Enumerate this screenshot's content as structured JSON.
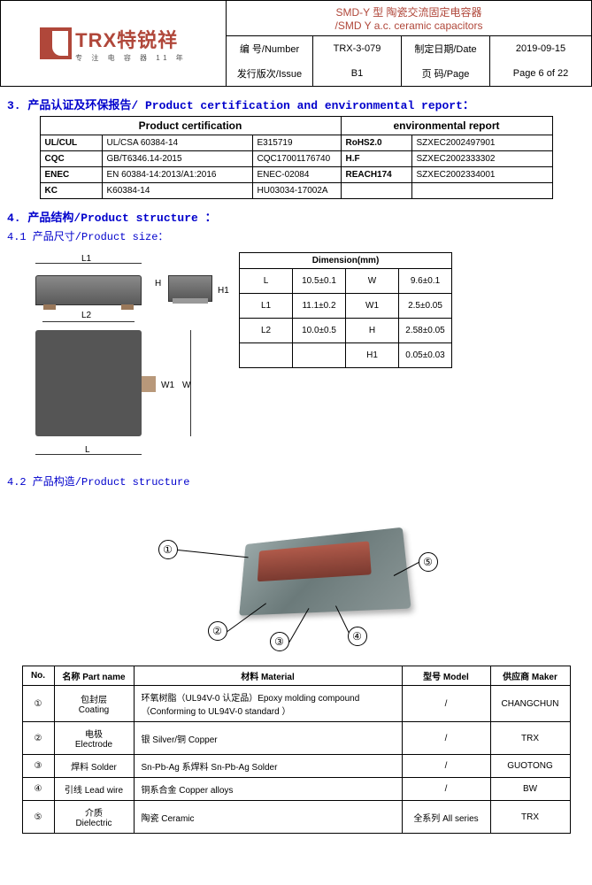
{
  "header": {
    "logo_main": "TRX特锐祥",
    "logo_sub": "专 注 电 容 器 11 年",
    "title_cn": "SMD-Y 型 陶瓷交流固定电容器",
    "title_en": "/SMD Y a.c. ceramic capacitors",
    "number_lbl": "编  号/Number",
    "number_val": "TRX-3-079",
    "date_lbl": "制定日期/Date",
    "date_val": "2019-09-15",
    "issue_lbl": "发行版次/Issue",
    "issue_val": "B1",
    "page_lbl": "页  码/Page",
    "page_val": "Page 6 of 22"
  },
  "sec3": {
    "heading": "3. 产品认证及环保报告/ Product certification and environmental report：",
    "th_cert": "Product certification",
    "th_env": "environmental report",
    "rows": [
      {
        "c1": "UL/CUL",
        "c2": "UL/CSA 60384-14",
        "c3": "E315719",
        "e1": "RoHS2.0",
        "e2": "SZXEC2002497901"
      },
      {
        "c1": "CQC",
        "c2": "GB/T6346.14-2015",
        "c3": "CQC17001176740",
        "e1": "H.F",
        "e2": "SZXEC2002333302"
      },
      {
        "c1": "ENEC",
        "c2": "EN 60384-14:2013/A1:2016",
        "c3": "ENEC-02084",
        "e1": "REACH174",
        "e2": "SZXEC2002334001"
      },
      {
        "c1": "KC",
        "c2": "K60384-14",
        "c3": "HU03034-17002A",
        "e1": "",
        "e2": ""
      }
    ]
  },
  "sec4": {
    "heading": "4. 产品结构/Product structure ：",
    "sub41": "4.1 产品尺寸/Product size：",
    "sub42": "4.2 产品构造/Product structure",
    "dim_head": "Dimension(mm)",
    "dims": {
      "L": "10.5±0.1",
      "W": "9.6±0.1",
      "L1": "11.1±0.2",
      "W1": "2.5±0.05",
      "L2": "10.0±0.5",
      "H": "2.58±0.05",
      "H1": "0.05±0.03"
    },
    "labels": {
      "L": "L",
      "L1": "L1",
      "L2": "L2",
      "W": "W",
      "W1": "W1",
      "H": "H",
      "H1": "H1"
    }
  },
  "mat": {
    "th_no": "No.",
    "th_part": "名称\nPart name",
    "th_mat": "材料 Material",
    "th_model": "型号 Model",
    "th_maker": "供应商 Maker",
    "rows": [
      {
        "n": "①",
        "part": "包封层\nCoating",
        "mat": "环氧树脂（UL94V-0 认定品）Epoxy molding compound （Conforming to UL94V-0 standard ）",
        "model": "/",
        "maker": "CHANGCHUN"
      },
      {
        "n": "②",
        "part": "电极\nElectrode",
        "mat": "银 Silver/铜 Copper",
        "model": "/",
        "maker": "TRX"
      },
      {
        "n": "③",
        "part": "焊料 Solder",
        "mat": "Sn-Pb-Ag 系焊料  Sn-Pb-Ag Solder",
        "model": "/",
        "maker": "GUOTONG"
      },
      {
        "n": "④",
        "part": "引线 Lead wire",
        "mat": "铜系合金 Copper alloys",
        "model": "/",
        "maker": "BW"
      },
      {
        "n": "⑤",
        "part": "介质\nDielectric",
        "mat": "陶瓷 Ceramic",
        "model": "全系列 All series",
        "maker": "TRX"
      }
    ]
  }
}
